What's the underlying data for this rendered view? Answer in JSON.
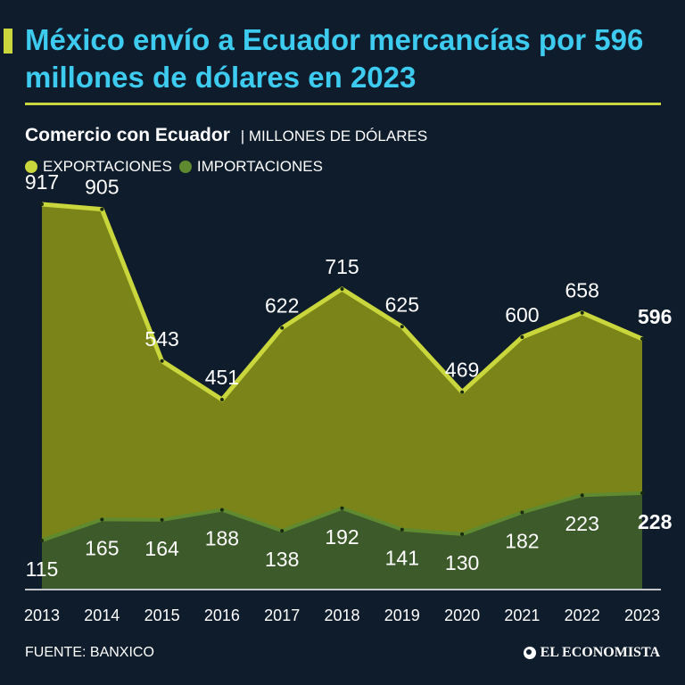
{
  "header": {
    "title": "México envío a Ecuador mercancías por 596 millones de dólares en 2023",
    "subtitle_bold": "Comercio con Ecuador",
    "subtitle_unit": "| MILLONES DE DÓLARES"
  },
  "footer": {
    "source": "FUENTE: BANXICO",
    "brand": "EL ECONOMISTA"
  },
  "colors": {
    "background": "#0f1c2b",
    "title": "#3ecbf0",
    "accent": "#c9d63c",
    "exports_fill": "#7a8418",
    "exports_line": "#c9d63c",
    "imports_fill": "#3d5a2a",
    "imports_line": "#5f8a2f"
  },
  "chart_data": {
    "type": "area",
    "x": [
      "2013",
      "2014",
      "2015",
      "2016",
      "2017",
      "2018",
      "2019",
      "2020",
      "2021",
      "2022",
      "2023"
    ],
    "series": [
      {
        "name": "EXPORTACIONES",
        "values": [
          917,
          905,
          543,
          451,
          622,
          715,
          625,
          469,
          600,
          658,
          596
        ]
      },
      {
        "name": "IMPORTACIONES",
        "values": [
          115,
          165,
          164,
          188,
          138,
          192,
          141,
          130,
          182,
          223,
          228
        ]
      }
    ],
    "labels": {
      "exports": [
        "917",
        "905",
        "543",
        "451",
        "622",
        "715",
        "625",
        "469",
        "600",
        "658",
        "596"
      ],
      "imports": [
        "115",
        "165",
        "164",
        "188",
        "138",
        "192",
        "141",
        "130",
        "182",
        "223",
        "228"
      ]
    },
    "legend": "top-left",
    "grid": false
  }
}
